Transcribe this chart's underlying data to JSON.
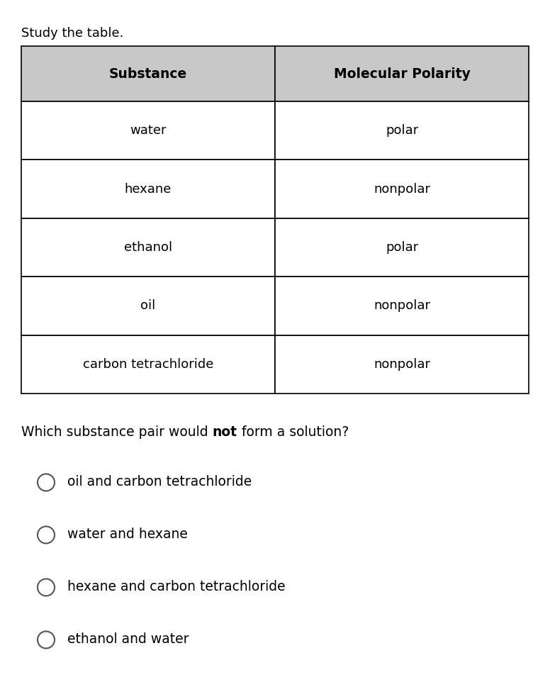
{
  "title_text": "Study the table.",
  "table_headers": [
    "Substance",
    "Molecular Polarity"
  ],
  "table_rows": [
    [
      "water",
      "polar"
    ],
    [
      "hexane",
      "nonpolar"
    ],
    [
      "ethanol",
      "polar"
    ],
    [
      "oil",
      "nonpolar"
    ],
    [
      "carbon tetrachloride",
      "nonpolar"
    ]
  ],
  "header_bg_color": "#c8c8c8",
  "header_text_color": "#000000",
  "cell_bg_color": "#ffffff",
  "border_color": "#000000",
  "options": [
    "oil and carbon tetrachloride",
    "water and hexane",
    "hexane and carbon tetrachloride",
    "ethanol and water"
  ],
  "fig_width": 7.76,
  "fig_height": 9.83,
  "dpi": 100,
  "bg_color": "#ffffff",
  "title_fontsize": 13,
  "header_fontsize": 13.5,
  "cell_fontsize": 13,
  "question_fontsize": 13.5,
  "option_fontsize": 13.5
}
